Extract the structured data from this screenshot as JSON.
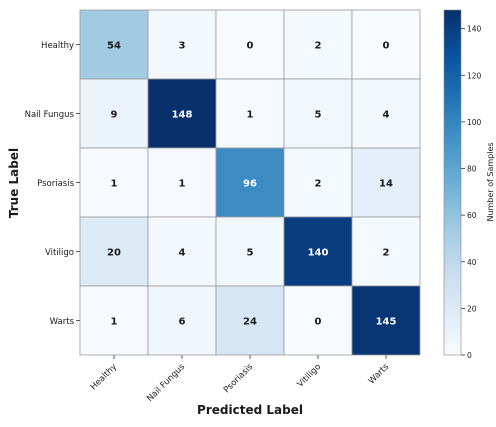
{
  "chart_data": {
    "type": "heatmap",
    "title": "",
    "xlabel": "Predicted Label",
    "ylabel": "True Label",
    "x_categories": [
      "Healthy",
      "Nail Fungus",
      "Psoriasis",
      "Vitiligo",
      "Warts"
    ],
    "y_categories": [
      "Healthy",
      "Nail Fungus",
      "Psoriasis",
      "Vitiligo",
      "Warts"
    ],
    "values": [
      [
        54,
        3,
        0,
        2,
        0
      ],
      [
        9,
        148,
        1,
        5,
        4
      ],
      [
        1,
        1,
        96,
        2,
        14
      ],
      [
        20,
        4,
        5,
        140,
        2
      ],
      [
        1,
        6,
        24,
        0,
        145
      ]
    ],
    "colorbar": {
      "label": "Number of Samples",
      "range": [
        0,
        148
      ],
      "ticks": [
        0,
        20,
        40,
        60,
        80,
        100,
        120,
        140
      ],
      "colormap": "Blues"
    },
    "grid": true,
    "x_tick_rotation": 45
  }
}
